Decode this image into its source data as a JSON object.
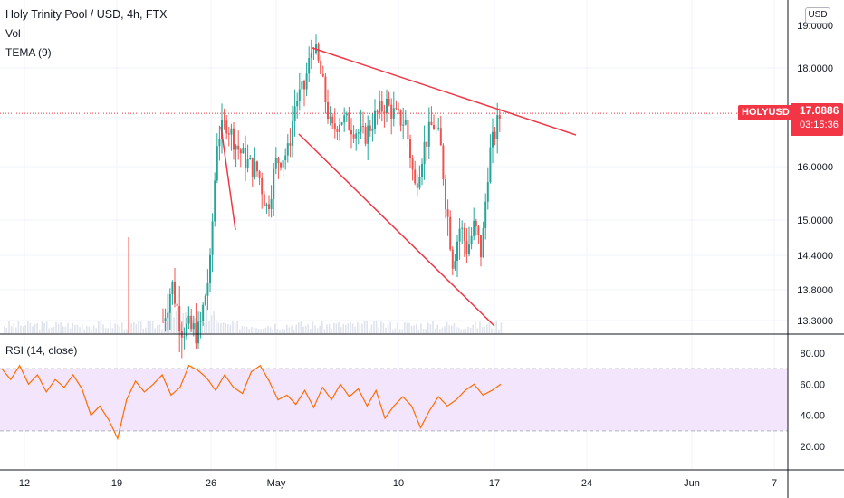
{
  "header": {
    "title": "Holy Trinity Pool / USD, 4h, FTX",
    "volume_label": "Vol",
    "tema_label": "TEMA (9)",
    "currency": "USD"
  },
  "price_marker": {
    "symbol": "HOLYUSD",
    "price": "17.0886",
    "countdown": "03:15:36"
  },
  "rsi": {
    "label": "RSI (14, close)"
  },
  "colors": {
    "up": "#26a69a",
    "down": "#ef5350",
    "trendline": "#f23645",
    "rsi_line": "#ff6d00",
    "rsi_band": "#f3e5fc",
    "volume": "#e0e3eb"
  },
  "chart_data": [
    {
      "type": "candlestick",
      "title": "Holy Trinity Pool / USD, 4h, FTX",
      "x_ticks": [
        "12",
        "19",
        "26",
        "May",
        "10",
        "17",
        "24",
        "Jun",
        "7"
      ],
      "y_ticks": [
        "13.3000",
        "13.8000",
        "14.4000",
        "15.0000",
        "16.0000",
        "17.0000",
        "18.0000"
      ],
      "y_top_partial": "19.0000",
      "last_price": 17.0886,
      "series_close_approx": [
        {
          "x": "25",
          "close": 14.0
        },
        {
          "x": "26",
          "close": 16.8
        },
        {
          "x": "27",
          "close": 16.2
        },
        {
          "x": "29",
          "close": 15.6
        },
        {
          "x": "May",
          "close": 17.4
        },
        {
          "x": "May 2",
          "close": 18.5
        },
        {
          "x": "May 4",
          "close": 17.0
        },
        {
          "x": "May 6",
          "close": 16.6
        },
        {
          "x": "May 8",
          "close": 17.3
        },
        {
          "x": "10",
          "close": 16.8
        },
        {
          "x": "11",
          "close": 15.8
        },
        {
          "x": "12",
          "close": 16.9
        },
        {
          "x": "13",
          "close": 15.3
        },
        {
          "x": "14",
          "close": 14.1
        },
        {
          "x": "15",
          "close": 14.8
        },
        {
          "x": "16",
          "close": 14.5
        },
        {
          "x": "17",
          "close": 16.6
        },
        {
          "x": "17 12:00",
          "close": 17.09
        }
      ],
      "annotations": [
        "descending resistance trendline",
        "descending support trendline",
        "horizontal last-price line"
      ]
    },
    {
      "type": "line",
      "title": "RSI (14, close)",
      "y_ticks": [
        "20.00",
        "40.00",
        "60.00",
        "80.00"
      ],
      "band": [
        30,
        70
      ],
      "series": [
        {
          "name": "RSI (14, close)",
          "values": [
            70,
            63,
            72,
            60,
            66,
            55,
            63,
            58,
            66,
            57,
            40,
            46,
            37,
            25,
            50,
            62,
            55,
            60,
            66,
            53,
            58,
            72,
            69,
            64,
            56,
            66,
            58,
            54,
            68,
            72,
            62,
            50,
            53,
            47,
            56,
            45,
            58,
            50,
            60,
            52,
            57,
            46,
            56,
            38,
            46,
            52,
            46,
            32,
            43,
            52,
            46,
            50,
            56,
            60,
            53,
            56,
            60
          ]
        }
      ]
    }
  ]
}
